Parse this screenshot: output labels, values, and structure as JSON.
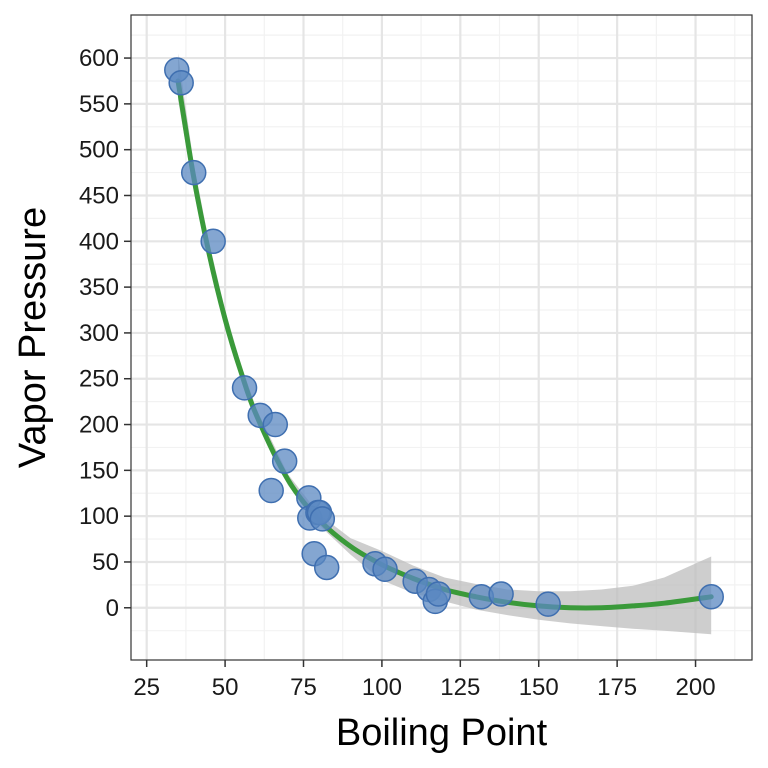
{
  "chart_data": {
    "type": "scatter",
    "title": "",
    "xlabel": "Boiling Point",
    "ylabel": "Vapor Pressure",
    "xlim": [
      20,
      218
    ],
    "ylim": [
      -57,
      647
    ],
    "xticks": [
      25,
      50,
      75,
      100,
      125,
      150,
      175,
      200
    ],
    "yticks": [
      0,
      50,
      100,
      150,
      200,
      250,
      300,
      350,
      400,
      450,
      500,
      550,
      600
    ],
    "grid": true,
    "legend": "none",
    "points": [
      {
        "x": 34.6,
        "y": 587
      },
      {
        "x": 36.0,
        "y": 573
      },
      {
        "x": 40.0,
        "y": 475
      },
      {
        "x": 46.2,
        "y": 400
      },
      {
        "x": 56.2,
        "y": 240
      },
      {
        "x": 61.2,
        "y": 210
      },
      {
        "x": 64.7,
        "y": 128
      },
      {
        "x": 66.0,
        "y": 200
      },
      {
        "x": 69.0,
        "y": 160
      },
      {
        "x": 76.7,
        "y": 120
      },
      {
        "x": 77.0,
        "y": 98
      },
      {
        "x": 78.4,
        "y": 59
      },
      {
        "x": 79.6,
        "y": 104
      },
      {
        "x": 80.1,
        "y": 104
      },
      {
        "x": 81.0,
        "y": 97
      },
      {
        "x": 82.4,
        "y": 44
      },
      {
        "x": 97.8,
        "y": 48
      },
      {
        "x": 101.0,
        "y": 42
      },
      {
        "x": 110.6,
        "y": 29
      },
      {
        "x": 115.0,
        "y": 20
      },
      {
        "x": 117.0,
        "y": 7
      },
      {
        "x": 118.0,
        "y": 15
      },
      {
        "x": 131.7,
        "y": 12
      },
      {
        "x": 138.0,
        "y": 15
      },
      {
        "x": 153.0,
        "y": 4
      },
      {
        "x": 205.0,
        "y": 12
      }
    ],
    "fit_curve": {
      "x": [
        35,
        40,
        45,
        50,
        55,
        60,
        70,
        80,
        90,
        100,
        110,
        120,
        130,
        140,
        150,
        160,
        170,
        180,
        190,
        205
      ],
      "y": [
        575,
        470,
        385,
        315,
        258,
        210,
        140,
        96,
        67,
        47,
        32,
        20,
        12,
        6,
        2,
        0,
        0,
        2,
        5,
        12
      ],
      "lower": [
        555,
        455,
        373,
        305,
        250,
        203,
        134,
        90,
        58,
        30,
        16,
        7,
        -2,
        -8,
        -13,
        -17,
        -20,
        -23,
        -25,
        -29
      ],
      "upper": [
        605,
        485,
        397,
        325,
        266,
        217,
        146,
        102,
        76,
        62,
        46,
        33,
        26,
        20,
        18,
        18,
        20,
        24,
        33,
        56
      ]
    },
    "colors": {
      "point_fill": "#5b88c1",
      "point_stroke": "#3f6fb0",
      "line": "#3a9a3a",
      "band": "#bdbdbd",
      "panel_border": "#333333",
      "grid_major": "#e5e5e5",
      "grid_minor": "#f2f2f2"
    }
  }
}
